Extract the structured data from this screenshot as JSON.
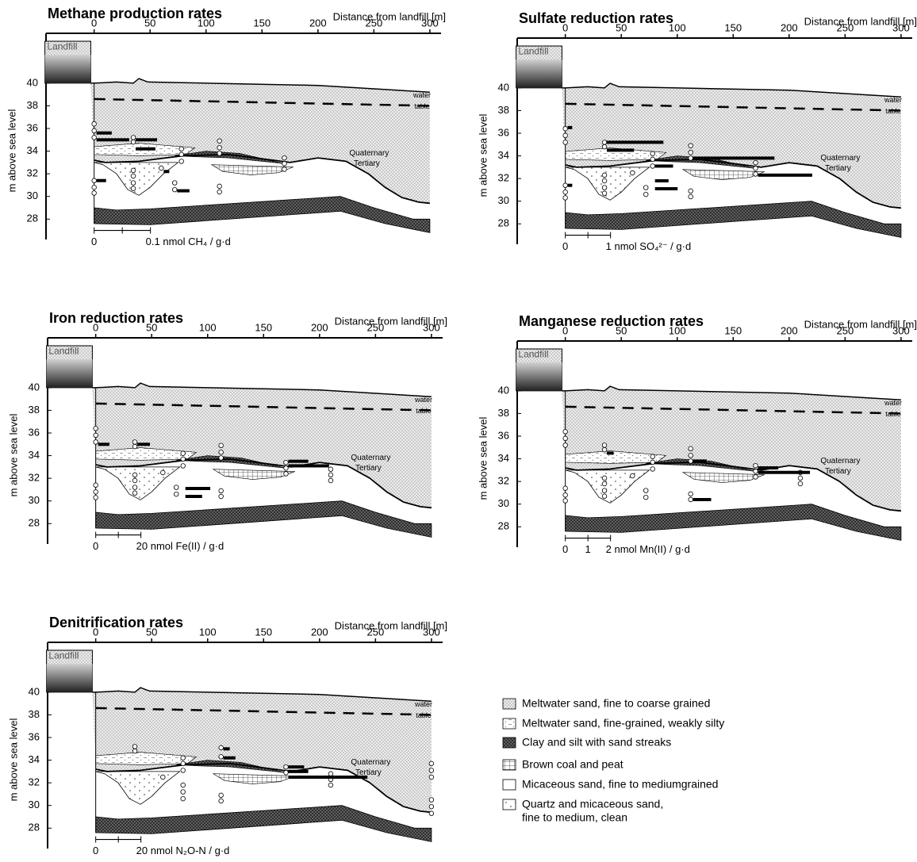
{
  "panels": [
    {
      "title": "Methane production rates",
      "x_label": "Distance from landfill [m]",
      "y_label": "m above sea level",
      "xlim": [
        -43,
        310
      ],
      "xticks": [
        0,
        50,
        100,
        150,
        200,
        250,
        300
      ],
      "ylim": [
        26.2,
        44.4
      ],
      "yticks": [
        28,
        30,
        32,
        34,
        36,
        38,
        40
      ],
      "landfill": "Landfill",
      "water": "water",
      "table": "table",
      "quaternary": "Quaternary",
      "tertiary": "Tertiary",
      "scale": {
        "ticks": [
          {
            "value": 0,
            "label": "0"
          },
          {
            "value": 0.1,
            "label": "0.1 nmol CH₄ / g·d"
          }
        ],
        "minor_ticks": [
          0.05
        ]
      },
      "bars": [
        {
          "x": 0,
          "y": 35.6,
          "value": 0.027
        },
        {
          "x": 0,
          "y": 35.0,
          "value": 0.058
        },
        {
          "x": 35,
          "y": 35.0,
          "value": 0.038
        },
        {
          "x": 35,
          "y": 34.2,
          "value": 0.035
        },
        {
          "x": 60,
          "y": 32.2,
          "value": 0.01
        },
        {
          "x": 72,
          "y": 30.5,
          "value": 0.022
        },
        {
          "x": 0,
          "y": 31.4,
          "value": 0.017
        }
      ],
      "samples": [
        [
          0,
          36.4
        ],
        [
          0,
          35.8
        ],
        [
          0,
          35.2
        ],
        [
          0,
          31.4
        ],
        [
          0,
          30.8
        ],
        [
          0,
          30.3
        ],
        [
          35,
          35.2
        ],
        [
          35,
          34.8
        ],
        [
          35,
          32.3
        ],
        [
          35,
          31.8
        ],
        [
          35,
          31.2
        ],
        [
          35,
          30.7
        ],
        [
          60,
          32.5
        ],
        [
          72,
          31.2
        ],
        [
          72,
          30.6
        ],
        [
          78,
          34.2
        ],
        [
          78,
          33.7
        ],
        [
          78,
          33.1
        ],
        [
          112,
          34.9
        ],
        [
          112,
          34.3
        ],
        [
          112,
          33.8
        ],
        [
          112,
          30.9
        ],
        [
          112,
          30.4
        ],
        [
          170,
          33.4
        ],
        [
          170,
          32.9
        ],
        [
          170,
          32.4
        ]
      ]
    },
    {
      "title": "Sulfate reduction rates",
      "x_label": "Distance from landfill [m]",
      "y_label": "m above sea level",
      "xlim": [
        -43,
        310
      ],
      "xticks": [
        0,
        50,
        100,
        150,
        200,
        250,
        300
      ],
      "ylim": [
        26.2,
        44.4
      ],
      "yticks": [
        28,
        30,
        32,
        34,
        36,
        38,
        40
      ],
      "landfill": "Landfill",
      "water": "water",
      "table": "table",
      "quaternary": "Quaternary",
      "tertiary": "Tertiary",
      "scale": {
        "ticks": [
          {
            "value": 0,
            "label": "0"
          },
          {
            "value": 1,
            "label": "1 nmol SO₄²⁻ / g·d"
          }
        ],
        "minor_ticks": [
          0.5
        ]
      },
      "bars": [
        {
          "x": 0,
          "y": 36.5,
          "value": 0.1
        },
        {
          "x": 35,
          "y": 35.2,
          "value": 1.25
        },
        {
          "x": 35,
          "y": 34.5,
          "value": 0.6
        },
        {
          "x": 78,
          "y": 33.1,
          "value": 0.4
        },
        {
          "x": 112,
          "y": 33.8,
          "value": 1.8
        },
        {
          "x": 170,
          "y": 32.3,
          "value": 1.2
        },
        {
          "x": 78,
          "y": 31.8,
          "value": 0.3
        },
        {
          "x": 78,
          "y": 31.1,
          "value": 0.5
        },
        {
          "x": 0,
          "y": 31.4,
          "value": 0.1
        }
      ],
      "samples": [
        [
          0,
          36.4
        ],
        [
          0,
          35.8
        ],
        [
          0,
          35.2
        ],
        [
          0,
          31.4
        ],
        [
          0,
          30.8
        ],
        [
          0,
          30.3
        ],
        [
          35,
          35.2
        ],
        [
          35,
          34.8
        ],
        [
          35,
          32.3
        ],
        [
          35,
          31.8
        ],
        [
          35,
          31.2
        ],
        [
          35,
          30.7
        ],
        [
          60,
          32.5
        ],
        [
          72,
          31.2
        ],
        [
          72,
          30.6
        ],
        [
          78,
          34.2
        ],
        [
          78,
          33.7
        ],
        [
          78,
          33.1
        ],
        [
          112,
          34.9
        ],
        [
          112,
          34.3
        ],
        [
          112,
          33.8
        ],
        [
          112,
          30.9
        ],
        [
          112,
          30.4
        ],
        [
          170,
          33.4
        ],
        [
          170,
          32.9
        ],
        [
          170,
          32.4
        ]
      ]
    },
    {
      "title": "Iron reduction rates",
      "x_label": "Distance from landfill [m]",
      "y_label": "m above sea level",
      "xlim": [
        -43,
        310
      ],
      "xticks": [
        0,
        50,
        100,
        150,
        200,
        250,
        300
      ],
      "ylim": [
        26.2,
        44.4
      ],
      "yticks": [
        28,
        30,
        32,
        34,
        36,
        38,
        40
      ],
      "landfill": "Landfill",
      "water": "water",
      "table": "table",
      "quaternary": "Quaternary",
      "tertiary": "Tertiary",
      "scale": {
        "ticks": [
          {
            "value": 0,
            "label": "0"
          },
          {
            "value": 20,
            "label": "20 nmol Fe(II) / g·d"
          }
        ],
        "minor_ticks": [
          10
        ]
      },
      "bars": [
        {
          "x": 0,
          "y": 35.0,
          "value": 5
        },
        {
          "x": 35,
          "y": 35.0,
          "value": 5.6
        },
        {
          "x": 78,
          "y": 31.1,
          "value": 11
        },
        {
          "x": 78,
          "y": 30.4,
          "value": 7.4
        },
        {
          "x": 170,
          "y": 33.5,
          "value": 8.8
        },
        {
          "x": 170,
          "y": 33.1,
          "value": 18
        }
      ],
      "samples": [
        [
          0,
          36.4
        ],
        [
          0,
          35.8
        ],
        [
          0,
          35.2
        ],
        [
          0,
          31.4
        ],
        [
          0,
          30.8
        ],
        [
          0,
          30.3
        ],
        [
          35,
          35.2
        ],
        [
          35,
          34.8
        ],
        [
          35,
          32.3
        ],
        [
          35,
          31.8
        ],
        [
          35,
          31.2
        ],
        [
          35,
          30.7
        ],
        [
          60,
          32.5
        ],
        [
          72,
          31.2
        ],
        [
          72,
          30.6
        ],
        [
          78,
          34.2
        ],
        [
          78,
          33.7
        ],
        [
          78,
          33.1
        ],
        [
          112,
          34.9
        ],
        [
          112,
          34.3
        ],
        [
          112,
          33.8
        ],
        [
          112,
          30.9
        ],
        [
          112,
          30.4
        ],
        [
          170,
          33.4
        ],
        [
          170,
          32.9
        ],
        [
          170,
          32.4
        ],
        [
          210,
          32.8
        ],
        [
          210,
          32.3
        ],
        [
          210,
          31.8
        ]
      ]
    },
    {
      "title": "Manganese reduction rates",
      "x_label": "Distance from landfill [m]",
      "y_label": "m above sea level",
      "xlim": [
        -43,
        310
      ],
      "xticks": [
        0,
        50,
        100,
        150,
        200,
        250,
        300
      ],
      "ylim": [
        26.2,
        44.4
      ],
      "yticks": [
        28,
        30,
        32,
        34,
        36,
        38,
        40
      ],
      "landfill": "Landfill",
      "water": "water",
      "table": "table",
      "quaternary": "Quaternary",
      "tertiary": "Tertiary",
      "scale": {
        "ticks": [
          {
            "value": 0,
            "label": "0"
          },
          {
            "value": 1,
            "label": "1"
          },
          {
            "value": 2,
            "label": "2 nmol Mn(II) / g·d"
          }
        ],
        "minor_ticks": []
      },
      "bars": [
        {
          "x": 35,
          "y": 34.5,
          "value": 0.3
        },
        {
          "x": 112,
          "y": 33.8,
          "value": 0.6
        },
        {
          "x": 170,
          "y": 33.2,
          "value": 0.9
        },
        {
          "x": 170,
          "y": 32.8,
          "value": 2.3
        },
        {
          "x": 112,
          "y": 30.4,
          "value": 0.8
        }
      ],
      "samples": [
        [
          0,
          36.4
        ],
        [
          0,
          35.8
        ],
        [
          0,
          35.2
        ],
        [
          0,
          31.4
        ],
        [
          0,
          30.8
        ],
        [
          0,
          30.3
        ],
        [
          35,
          35.2
        ],
        [
          35,
          34.8
        ],
        [
          35,
          32.3
        ],
        [
          35,
          31.8
        ],
        [
          35,
          31.2
        ],
        [
          35,
          30.7
        ],
        [
          60,
          32.5
        ],
        [
          72,
          31.2
        ],
        [
          72,
          30.6
        ],
        [
          78,
          34.2
        ],
        [
          78,
          33.7
        ],
        [
          78,
          33.1
        ],
        [
          112,
          34.9
        ],
        [
          112,
          34.3
        ],
        [
          112,
          33.8
        ],
        [
          112,
          30.9
        ],
        [
          112,
          30.4
        ],
        [
          170,
          33.4
        ],
        [
          170,
          32.9
        ],
        [
          170,
          32.4
        ],
        [
          210,
          32.8
        ],
        [
          210,
          32.3
        ],
        [
          210,
          31.8
        ]
      ]
    },
    {
      "title": "Denitrification rates",
      "x_label": "Distance from landfill [m]",
      "y_label": "m above sea level",
      "xlim": [
        -43,
        310
      ],
      "xticks": [
        0,
        50,
        100,
        150,
        200,
        250,
        300
      ],
      "ylim": [
        26.2,
        44.4
      ],
      "yticks": [
        28,
        30,
        32,
        34,
        36,
        38,
        40
      ],
      "landfill": "Landfill",
      "water": "water",
      "table": "table",
      "quaternary": "Quaternary",
      "tertiary": "Tertiary",
      "scale": {
        "ticks": [
          {
            "value": 0,
            "label": "0"
          },
          {
            "value": 20,
            "label": "20 nmol N₂O-N / g·d"
          }
        ],
        "minor_ticks": [
          10
        ]
      },
      "bars": [
        {
          "x": 112,
          "y": 35.0,
          "value": 2.8
        },
        {
          "x": 112,
          "y": 34.2,
          "value": 5.3
        },
        {
          "x": 170,
          "y": 33.4,
          "value": 7
        },
        {
          "x": 170,
          "y": 33.0,
          "value": 8.8
        },
        {
          "x": 170,
          "y": 32.5,
          "value": 35
        }
      ],
      "samples": [
        [
          35,
          35.2
        ],
        [
          35,
          34.8
        ],
        [
          60,
          32.5
        ],
        [
          78,
          34.2
        ],
        [
          78,
          33.7
        ],
        [
          78,
          33.1
        ],
        [
          78,
          31.8
        ],
        [
          78,
          31.2
        ],
        [
          78,
          30.6
        ],
        [
          112,
          35.1
        ],
        [
          112,
          34.3
        ],
        [
          112,
          30.9
        ],
        [
          112,
          30.4
        ],
        [
          170,
          33.4
        ],
        [
          170,
          32.9
        ],
        [
          210,
          32.8
        ],
        [
          210,
          32.3
        ],
        [
          210,
          31.8
        ],
        [
          300,
          33.7
        ],
        [
          300,
          33.1
        ],
        [
          300,
          32.5
        ],
        [
          300,
          30.5
        ],
        [
          300,
          29.9
        ],
        [
          300,
          29.3
        ]
      ]
    }
  ],
  "legend": [
    {
      "lines": [
        "Meltwater sand, fine to coarse grained"
      ]
    },
    {
      "lines": [
        "Meltwater sand, fine-grained, weakly silty"
      ]
    },
    {
      "lines": [
        "Clay and silt with sand streaks"
      ]
    },
    {
      "lines": [
        "Brown coal and peat"
      ]
    },
    {
      "lines": [
        "Micaceous sand, fine to mediumgrained"
      ]
    },
    {
      "lines": [
        "Quartz and micaceous sand,",
        "fine to medium, clean"
      ]
    }
  ]
}
